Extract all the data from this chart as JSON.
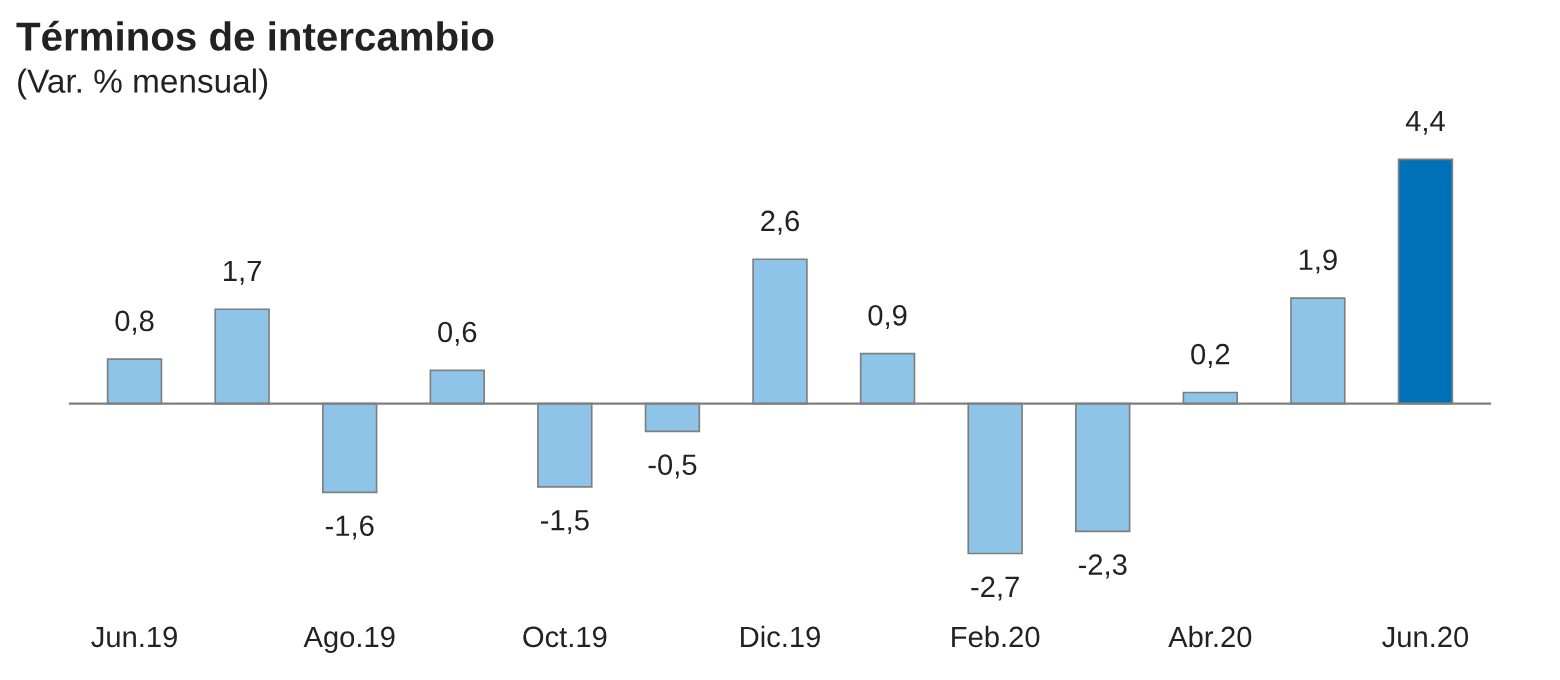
{
  "chart_data": {
    "type": "bar",
    "title": "Términos de intercambio",
    "subtitle": "(Var. % mensual)",
    "categories": [
      "Jun.19",
      null,
      "Ago.19",
      null,
      "Oct.19",
      null,
      "Dic.19",
      null,
      "Feb.20",
      null,
      "Abr.20",
      null,
      "Jun.20"
    ],
    "values": [
      0.8,
      1.7,
      -1.6,
      0.6,
      -1.5,
      -0.5,
      2.6,
      0.9,
      -2.7,
      -2.3,
      0.2,
      1.9,
      4.4
    ],
    "colors": [
      "#8ec4e8",
      "#8ec4e8",
      "#8ec4e8",
      "#8ec4e8",
      "#8ec4e8",
      "#8ec4e8",
      "#8ec4e8",
      "#8ec4e8",
      "#8ec4e8",
      "#8ec4e8",
      "#8ec4e8",
      "#8ec4e8",
      "#0070b8"
    ],
    "value_labels": [
      "0,8",
      "1,7",
      "-1,6",
      "0,6",
      "-1,5",
      "-0,5",
      "2,6",
      "0,9",
      "-2,7",
      "-2,3",
      "0,2",
      "1,9",
      "4,4"
    ],
    "grid": false,
    "legend": false
  }
}
